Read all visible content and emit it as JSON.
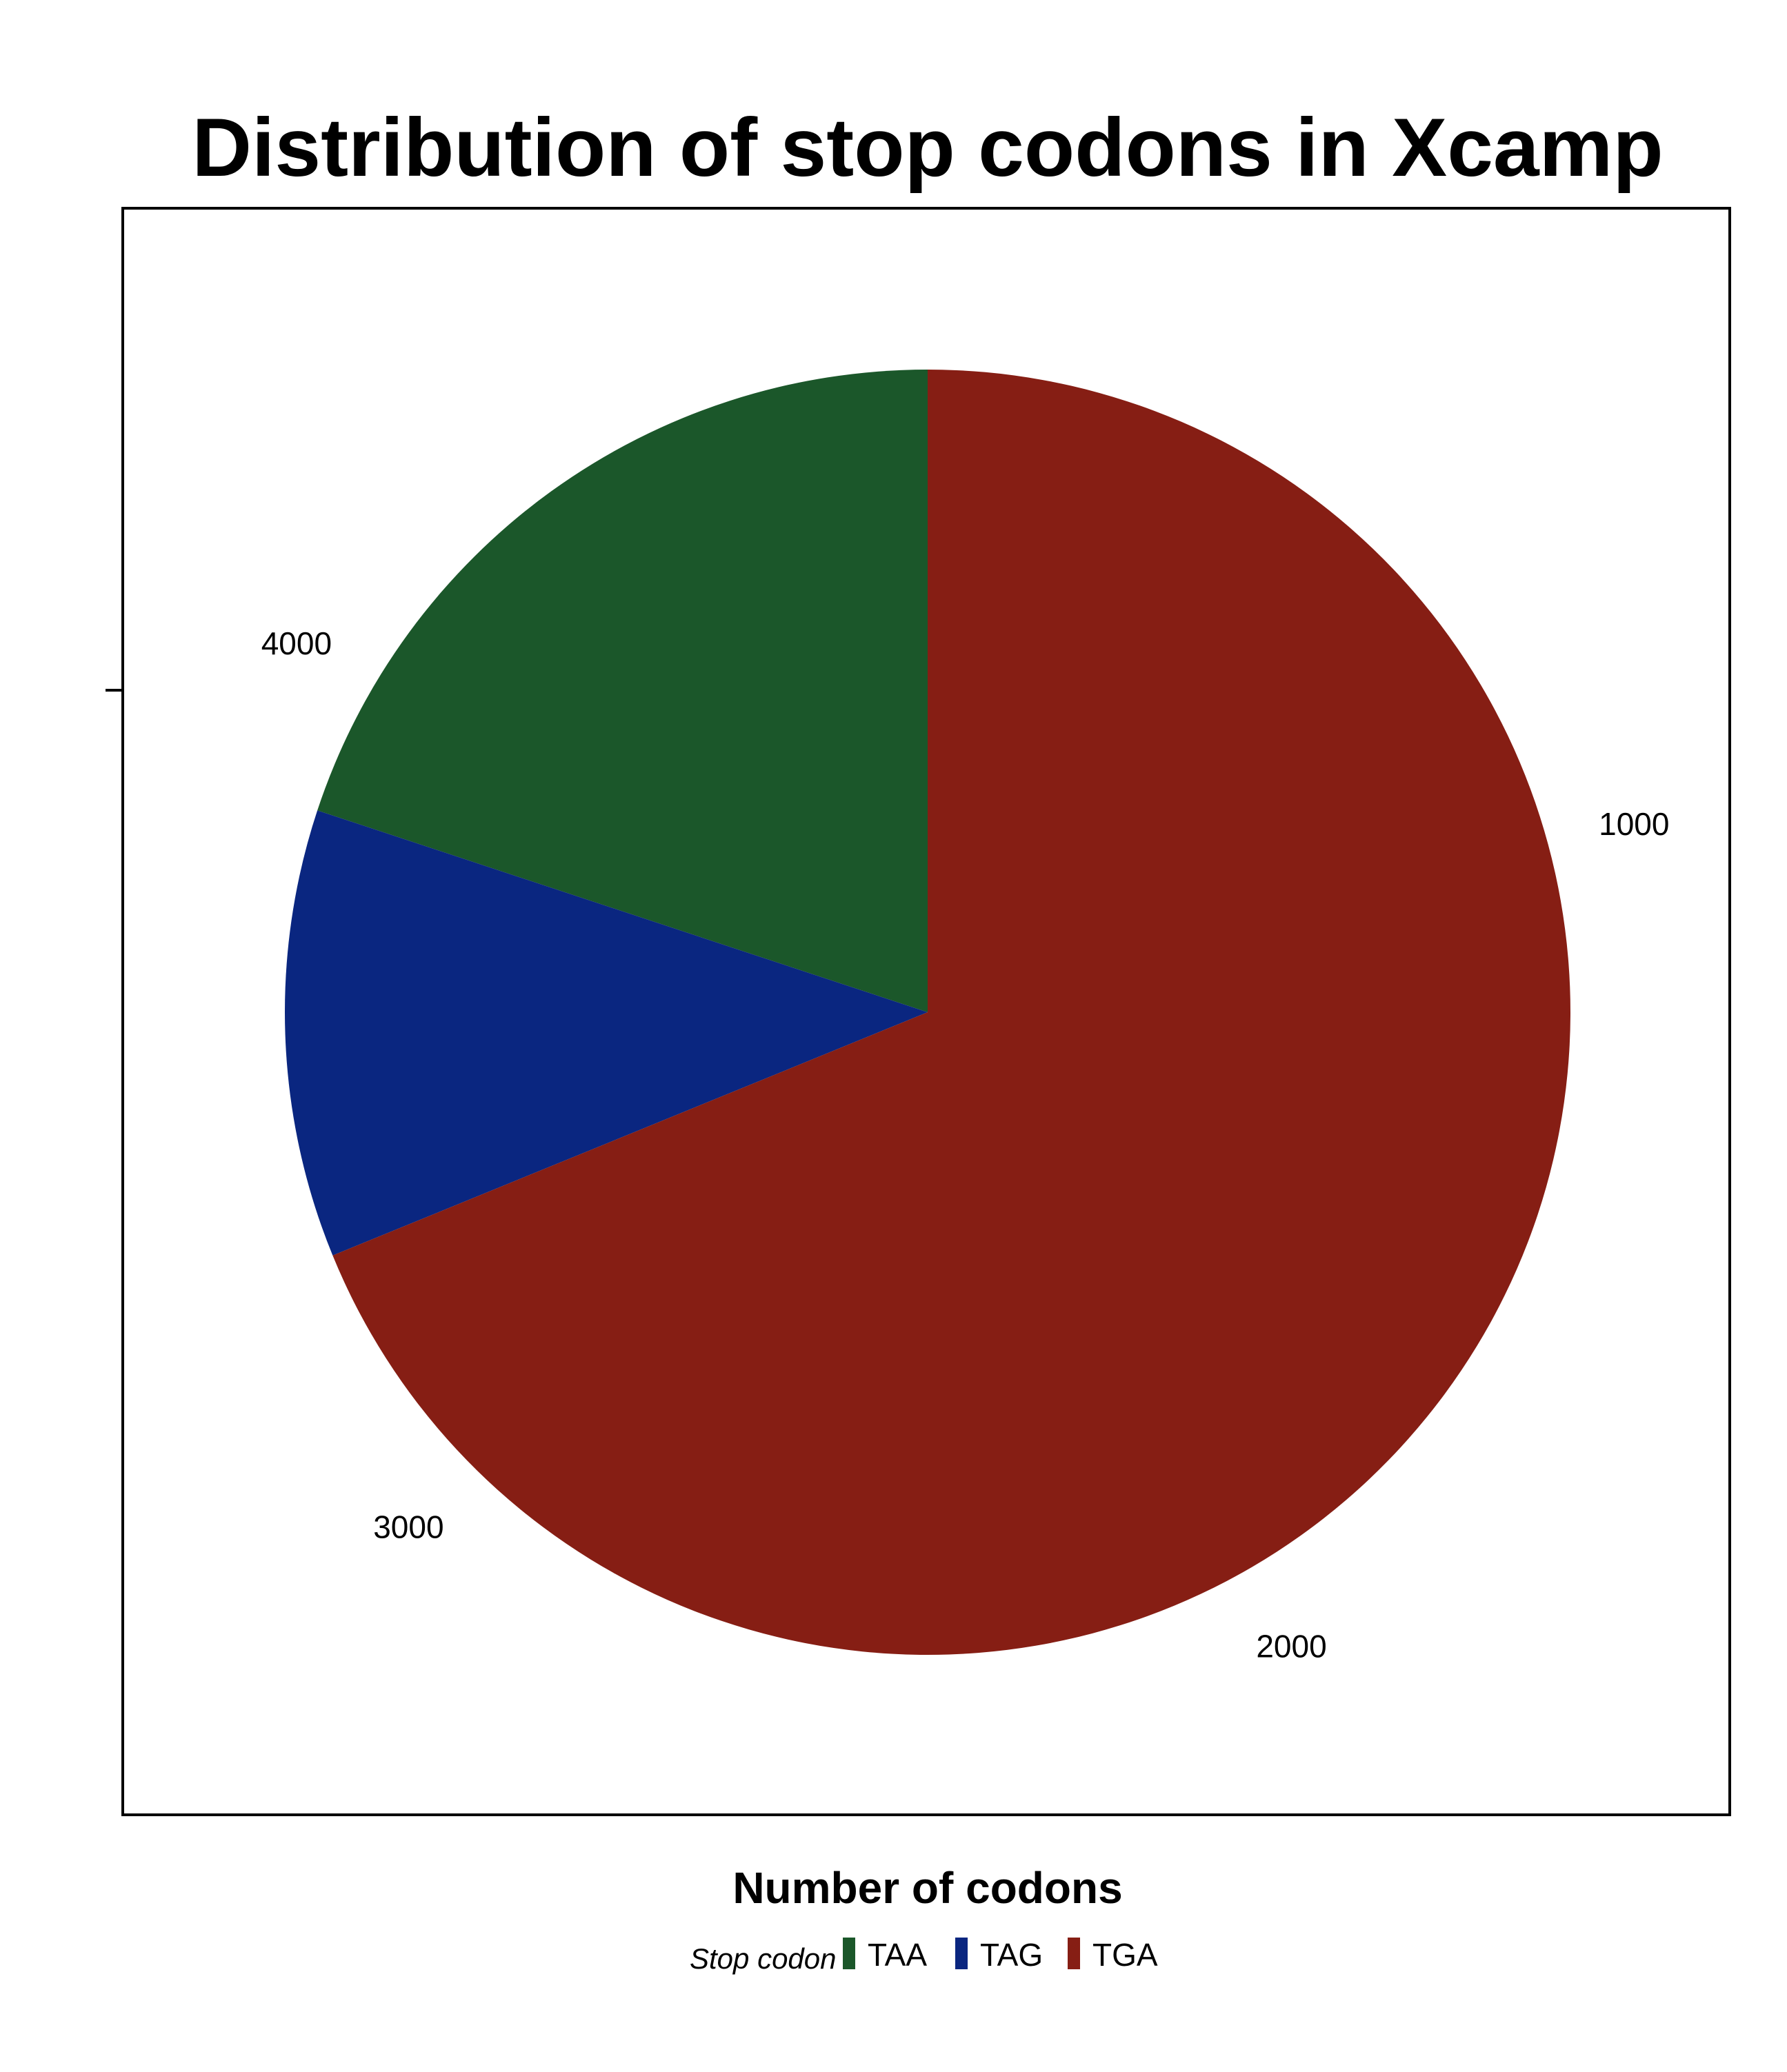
{
  "chart_data": {
    "type": "pie",
    "title": "Distribution of stop codons in Xcamp",
    "xlabel": "Number of codons",
    "ylabel": "",
    "categories": [
      "TAA",
      "TAG",
      "TGA"
    ],
    "values": [
      955,
      540,
      3300
    ],
    "colors": [
      "#1b572a",
      "#0a2680",
      "#861e14"
    ],
    "axis_ticks": [
      "1000",
      "2000",
      "3000",
      "4000"
    ],
    "axis_range": [
      0,
      4795
    ],
    "legend": {
      "title": "Stop codon",
      "entries": [
        "TAA",
        "TAG",
        "TGA"
      ],
      "placement": "bottom"
    },
    "grid": false
  }
}
